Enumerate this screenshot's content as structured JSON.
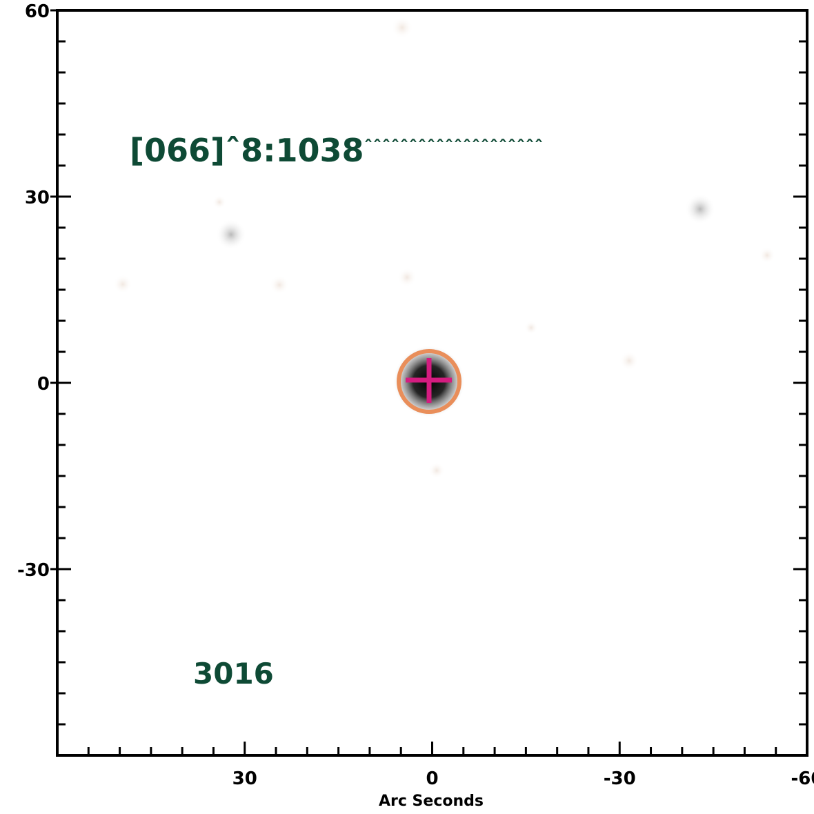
{
  "plot": {
    "x_axis": {
      "title": "Arc Seconds",
      "range": [
        60,
        -60
      ],
      "ticks": [
        {
          "value": 30,
          "label": "30"
        },
        {
          "value": 0,
          "label": "0"
        },
        {
          "value": -30,
          "label": "-30"
        },
        {
          "value": -60,
          "label": "-60"
        }
      ],
      "minor_step": 5
    },
    "y_axis": {
      "range": [
        -60,
        60
      ],
      "ticks": [
        {
          "value": 60,
          "label": "60"
        },
        {
          "value": 30,
          "label": "30"
        },
        {
          "value": 0,
          "label": "0"
        },
        {
          "value": -30,
          "label": "-30"
        }
      ],
      "minor_step": 5
    },
    "annotations": {
      "id_label": "[066]ˆ8:1038",
      "id_tail": "ˆˆˆˆˆˆˆˆˆˆˆˆˆˆˆˆˆˆˆˆ",
      "number": "3016"
    },
    "colors": {
      "annotation_text": "#0e4a35",
      "target_circle": "#e98e5a",
      "crosshair": "#d41c80",
      "frame": "#000000"
    },
    "target": {
      "x": 0,
      "y": 0,
      "circle_radius_arcsec": 5
    }
  }
}
